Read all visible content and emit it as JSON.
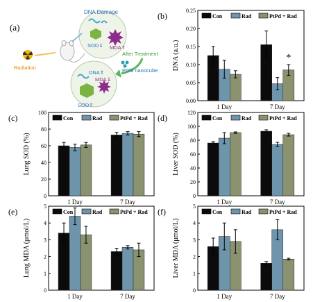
{
  "panel_a": {
    "label": "(a)",
    "dna_damage": "DNA Damage",
    "sod_down": "SOD⇓",
    "mda_up": "MDA⇑",
    "radiation": "Radiation",
    "after_treatment": "After Treatment",
    "nanocube": "PtPb nanocube",
    "dna_up": "DNA⇑",
    "mda_down": "MDA⇓",
    "sod_up": "SOD⇑",
    "colors": {
      "radiation": "#f2b400",
      "arrow": "#5cb85c",
      "mda": "#8e2c8e",
      "sod": "#7cb342",
      "dna": "#4aa3d8"
    }
  },
  "legend": [
    "Con",
    "Rad",
    "PtPd + Rad"
  ],
  "colors": {
    "Con": "#0b0b0b",
    "Rad": "#6f95ad",
    "PtPd + Rad": "#8a9270"
  },
  "chart_data": [
    {
      "panel": "(b)",
      "type": "bar",
      "ylabel": "DNA (a.u.)",
      "categories": [
        "1 Day",
        "7 Day"
      ],
      "ylim": [
        0,
        0.25
      ],
      "yticks": [
        "0.00",
        "0.05",
        "0.10",
        "0.15",
        "0.20",
        "0.25"
      ],
      "series": [
        {
          "name": "Con",
          "values": [
            0.125,
            0.155
          ],
          "errors": [
            0.025,
            0.038
          ]
        },
        {
          "name": "Rad",
          "values": [
            0.087,
            0.047
          ],
          "errors": [
            0.025,
            0.017
          ]
        },
        {
          "name": "PtPd + Rad",
          "values": [
            0.073,
            0.085
          ],
          "errors": [
            0.01,
            0.015
          ]
        }
      ],
      "annotation": "*"
    },
    {
      "panel": "(c)",
      "type": "bar",
      "ylabel": "Lung SOD (%)",
      "categories": [
        "1 Day",
        "7 Day"
      ],
      "ylim": [
        0,
        100
      ],
      "yticks": [
        "0",
        "20",
        "40",
        "60",
        "80",
        "100"
      ],
      "series": [
        {
          "name": "Con",
          "values": [
            60,
            73
          ],
          "errors": [
            4,
            3
          ]
        },
        {
          "name": "Rad",
          "values": [
            58,
            75
          ],
          "errors": [
            4,
            2
          ]
        },
        {
          "name": "PtPd + Rad",
          "values": [
            61,
            74
          ],
          "errors": [
            3,
            3
          ]
        }
      ]
    },
    {
      "panel": "(d)",
      "type": "bar",
      "ylabel": "Liver SOD (%)",
      "categories": [
        "1 Day",
        "7 Day"
      ],
      "ylim": [
        0,
        120
      ],
      "yticks": [
        "0",
        "20",
        "40",
        "60",
        "80",
        "100",
        "120"
      ],
      "series": [
        {
          "name": "Con",
          "values": [
            76,
            93
          ],
          "errors": [
            2,
            2
          ]
        },
        {
          "name": "Rad",
          "values": [
            83,
            74
          ],
          "errors": [
            8,
            3
          ]
        },
        {
          "name": "PtPd + Rad",
          "values": [
            91,
            88
          ],
          "errors": [
            1,
            2
          ]
        }
      ]
    },
    {
      "panel": "(e)",
      "type": "bar",
      "ylabel": "Lung MDA (μmol/L)",
      "categories": [
        "1 Day",
        "7 Day"
      ],
      "ylim": [
        0,
        5
      ],
      "yticks": [
        "0",
        "1",
        "2",
        "3",
        "4",
        "5"
      ],
      "series": [
        {
          "name": "Con",
          "values": [
            3.4,
            2.3
          ],
          "errors": [
            0.6,
            0.2
          ]
        },
        {
          "name": "Rad",
          "values": [
            4.4,
            2.55
          ],
          "errors": [
            0.5,
            0.1
          ]
        },
        {
          "name": "PtPd + Rad",
          "values": [
            3.3,
            2.4
          ],
          "errors": [
            0.5,
            0.4
          ]
        }
      ]
    },
    {
      "panel": "(f)",
      "type": "bar",
      "ylabel": "Liver MDA (μmol/L)",
      "categories": [
        "1 Day",
        "7 Day"
      ],
      "ylim": [
        0,
        5
      ],
      "yticks": [
        "0",
        "1",
        "2",
        "3",
        "4",
        "5"
      ],
      "series": [
        {
          "name": "Con",
          "values": [
            2.6,
            1.6
          ],
          "errors": [
            0.5,
            0.1
          ]
        },
        {
          "name": "Rad",
          "values": [
            3.2,
            3.6
          ],
          "errors": [
            0.8,
            0.6
          ]
        },
        {
          "name": "PtPd + Rad",
          "values": [
            2.9,
            1.85
          ],
          "errors": [
            0.7,
            0.05
          ]
        }
      ]
    }
  ]
}
